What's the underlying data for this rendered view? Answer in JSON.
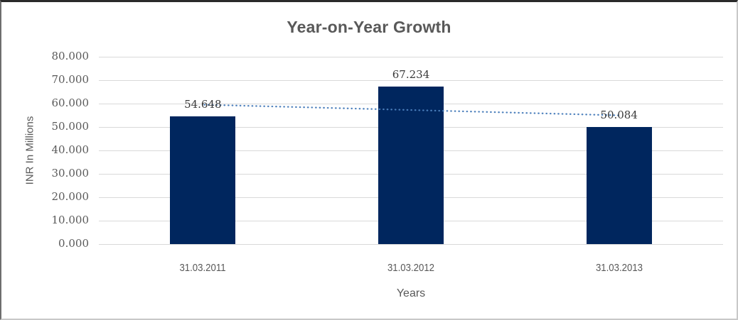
{
  "chart_data": {
    "type": "bar",
    "title": "Year-on-Year Growth",
    "xlabel": "Years",
    "ylabel": "INR In Millions",
    "categories": [
      "31.03.2011",
      "31.03.2012",
      "31.03.2013"
    ],
    "values": [
      54.648,
      67.234,
      50.084
    ],
    "data_labels": [
      "54.648",
      "67.234",
      "50.084"
    ],
    "ylim": [
      0,
      80
    ],
    "ytick_step": 10,
    "ytick_labels": [
      "0.000",
      "10.000",
      "20.000",
      "30.000",
      "40.000",
      "50.000",
      "60.000",
      "70.000",
      "80.000"
    ],
    "grid": true,
    "legend": false,
    "trendline": {
      "type": "linear",
      "style": "dotted"
    },
    "colors": {
      "bar": "#00265e",
      "trendline": "#4a7ebb",
      "gridline": "#d9d9d9",
      "axis_text": "#595959",
      "data_label_text": "#3a3a3a",
      "title_text": "#595959"
    }
  }
}
